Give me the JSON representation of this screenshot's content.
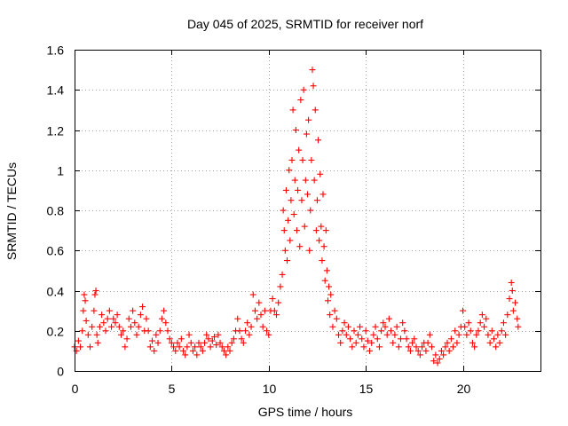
{
  "chart_data": {
    "type": "scatter",
    "title": "Day 045 of 2025, SRMTID for receiver norf",
    "xlabel": "GPS time / hours",
    "ylabel": "SRMTID / TECUs",
    "xlim": [
      0,
      24
    ],
    "ylim": [
      0,
      1.6
    ],
    "xticks": [
      0,
      5,
      10,
      15,
      20
    ],
    "yticks": [
      0,
      0.2,
      0.4,
      0.6,
      0.8,
      1,
      1.2,
      1.4,
      1.6
    ],
    "xtick_labels": [
      "0",
      "5",
      "10",
      "15",
      "20"
    ],
    "ytick_labels": [
      "0",
      "0.2",
      "0.4",
      "0.6",
      "0.8",
      "1",
      "1.2",
      "1.4",
      "1.6"
    ],
    "grid": true,
    "marker": "+",
    "series": [
      {
        "name": "SRMTID",
        "color": "#ff0000",
        "points": [
          [
            0.0,
            0.12
          ],
          [
            0.1,
            0.1
          ],
          [
            0.2,
            0.15
          ],
          [
            0.3,
            0.12
          ],
          [
            0.4,
            0.2
          ],
          [
            0.45,
            0.3
          ],
          [
            0.5,
            0.38
          ],
          [
            0.55,
            0.35
          ],
          [
            0.6,
            0.25
          ],
          [
            0.7,
            0.18
          ],
          [
            0.8,
            0.12
          ],
          [
            0.9,
            0.22
          ],
          [
            1.0,
            0.3
          ],
          [
            1.05,
            0.38
          ],
          [
            1.1,
            0.4
          ],
          [
            1.15,
            0.18
          ],
          [
            1.2,
            0.14
          ],
          [
            1.3,
            0.22
          ],
          [
            1.4,
            0.28
          ],
          [
            1.5,
            0.24
          ],
          [
            1.6,
            0.2
          ],
          [
            1.7,
            0.26
          ],
          [
            1.8,
            0.3
          ],
          [
            1.9,
            0.22
          ],
          [
            2.0,
            0.26
          ],
          [
            2.1,
            0.24
          ],
          [
            2.2,
            0.28
          ],
          [
            2.3,
            0.22
          ],
          [
            2.4,
            0.18
          ],
          [
            2.5,
            0.2
          ],
          [
            2.6,
            0.12
          ],
          [
            2.7,
            0.16
          ],
          [
            2.8,
            0.26
          ],
          [
            2.9,
            0.22
          ],
          [
            3.0,
            0.3
          ],
          [
            3.1,
            0.24
          ],
          [
            3.2,
            0.18
          ],
          [
            3.3,
            0.22
          ],
          [
            3.4,
            0.28
          ],
          [
            3.5,
            0.32
          ],
          [
            3.6,
            0.2
          ],
          [
            3.7,
            0.26
          ],
          [
            3.8,
            0.2
          ],
          [
            3.9,
            0.12
          ],
          [
            4.0,
            0.15
          ],
          [
            4.1,
            0.1
          ],
          [
            4.2,
            0.18
          ],
          [
            4.3,
            0.14
          ],
          [
            4.4,
            0.2
          ],
          [
            4.5,
            0.26
          ],
          [
            4.6,
            0.3
          ],
          [
            4.7,
            0.24
          ],
          [
            4.8,
            0.2
          ],
          [
            4.9,
            0.16
          ],
          [
            5.0,
            0.14
          ],
          [
            5.1,
            0.12
          ],
          [
            5.2,
            0.1
          ],
          [
            5.3,
            0.14
          ],
          [
            5.4,
            0.12
          ],
          [
            5.5,
            0.16
          ],
          [
            5.6,
            0.1
          ],
          [
            5.7,
            0.08
          ],
          [
            5.8,
            0.12
          ],
          [
            5.9,
            0.18
          ],
          [
            6.0,
            0.14
          ],
          [
            6.1,
            0.1
          ],
          [
            6.2,
            0.12
          ],
          [
            6.3,
            0.08
          ],
          [
            6.4,
            0.14
          ],
          [
            6.5,
            0.12
          ],
          [
            6.6,
            0.1
          ],
          [
            6.7,
            0.14
          ],
          [
            6.8,
            0.18
          ],
          [
            6.9,
            0.16
          ],
          [
            7.0,
            0.12
          ],
          [
            7.1,
            0.15
          ],
          [
            7.2,
            0.17
          ],
          [
            7.3,
            0.13
          ],
          [
            7.4,
            0.18
          ],
          [
            7.5,
            0.14
          ],
          [
            7.6,
            0.12
          ],
          [
            7.7,
            0.1
          ],
          [
            7.8,
            0.08
          ],
          [
            7.9,
            0.12
          ],
          [
            8.0,
            0.1
          ],
          [
            8.1,
            0.14
          ],
          [
            8.2,
            0.16
          ],
          [
            8.3,
            0.2
          ],
          [
            8.4,
            0.26
          ],
          [
            8.5,
            0.2
          ],
          [
            8.6,
            0.16
          ],
          [
            8.7,
            0.14
          ],
          [
            8.8,
            0.2
          ],
          [
            8.9,
            0.24
          ],
          [
            9.0,
            0.18
          ],
          [
            9.1,
            0.22
          ],
          [
            9.2,
            0.38
          ],
          [
            9.3,
            0.3
          ],
          [
            9.4,
            0.26
          ],
          [
            9.5,
            0.34
          ],
          [
            9.6,
            0.28
          ],
          [
            9.7,
            0.22
          ],
          [
            9.8,
            0.3
          ],
          [
            9.9,
            0.2
          ],
          [
            10.0,
            0.18
          ],
          [
            10.1,
            0.3
          ],
          [
            10.2,
            0.36
          ],
          [
            10.3,
            0.3
          ],
          [
            10.4,
            0.28
          ],
          [
            10.5,
            0.34
          ],
          [
            10.6,
            0.42
          ],
          [
            10.7,
            0.48
          ],
          [
            10.75,
            0.8
          ],
          [
            10.8,
            0.7
          ],
          [
            10.85,
            0.6
          ],
          [
            10.9,
            0.9
          ],
          [
            10.95,
            0.55
          ],
          [
            11.0,
            0.75
          ],
          [
            11.05,
            1.0
          ],
          [
            11.1,
            0.65
          ],
          [
            11.15,
            0.85
          ],
          [
            11.2,
            1.05
          ],
          [
            11.25,
            1.3
          ],
          [
            11.3,
            0.78
          ],
          [
            11.35,
            0.95
          ],
          [
            11.4,
            1.2
          ],
          [
            11.45,
            0.7
          ],
          [
            11.5,
            0.9
          ],
          [
            11.55,
            1.1
          ],
          [
            11.6,
            0.62
          ],
          [
            11.65,
            1.35
          ],
          [
            11.7,
            0.85
          ],
          [
            11.75,
            1.05
          ],
          [
            11.8,
            1.4
          ],
          [
            11.85,
            0.72
          ],
          [
            11.9,
            0.95
          ],
          [
            11.95,
            1.18
          ],
          [
            12.0,
            0.88
          ],
          [
            12.05,
            1.25
          ],
          [
            12.1,
            0.6
          ],
          [
            12.15,
            0.8
          ],
          [
            12.2,
            1.05
          ],
          [
            12.25,
            1.5
          ],
          [
            12.3,
            1.42
          ],
          [
            12.35,
            0.95
          ],
          [
            12.4,
            1.3
          ],
          [
            12.45,
            0.7
          ],
          [
            12.5,
            0.85
          ],
          [
            12.55,
            1.15
          ],
          [
            12.6,
            0.65
          ],
          [
            12.65,
            0.98
          ],
          [
            12.7,
            0.72
          ],
          [
            12.75,
            0.55
          ],
          [
            12.8,
            0.88
          ],
          [
            12.85,
            0.62
          ],
          [
            12.9,
            0.45
          ],
          [
            12.95,
            0.7
          ],
          [
            13.0,
            0.5
          ],
          [
            13.05,
            0.35
          ],
          [
            13.1,
            0.42
          ],
          [
            13.15,
            0.28
          ],
          [
            13.2,
            0.38
          ],
          [
            13.3,
            0.22
          ],
          [
            13.4,
            0.3
          ],
          [
            13.5,
            0.26
          ],
          [
            13.6,
            0.18
          ],
          [
            13.7,
            0.14
          ],
          [
            13.8,
            0.2
          ],
          [
            13.9,
            0.24
          ],
          [
            14.0,
            0.18
          ],
          [
            14.1,
            0.22
          ],
          [
            14.2,
            0.16
          ],
          [
            14.3,
            0.12
          ],
          [
            14.4,
            0.2
          ],
          [
            14.5,
            0.14
          ],
          [
            14.6,
            0.18
          ],
          [
            14.7,
            0.22
          ],
          [
            14.8,
            0.16
          ],
          [
            14.9,
            0.12
          ],
          [
            15.0,
            0.2
          ],
          [
            15.1,
            0.15
          ],
          [
            15.2,
            0.1
          ],
          [
            15.3,
            0.14
          ],
          [
            15.4,
            0.18
          ],
          [
            15.5,
            0.22
          ],
          [
            15.6,
            0.16
          ],
          [
            15.7,
            0.12
          ],
          [
            15.8,
            0.2
          ],
          [
            15.9,
            0.24
          ],
          [
            16.0,
            0.22
          ],
          [
            16.1,
            0.18
          ],
          [
            16.2,
            0.26
          ],
          [
            16.3,
            0.2
          ],
          [
            16.4,
            0.14
          ],
          [
            16.5,
            0.18
          ],
          [
            16.6,
            0.22
          ],
          [
            16.7,
            0.12
          ],
          [
            16.8,
            0.16
          ],
          [
            16.9,
            0.24
          ],
          [
            17.0,
            0.2
          ],
          [
            17.1,
            0.16
          ],
          [
            17.2,
            0.12
          ],
          [
            17.3,
            0.1
          ],
          [
            17.4,
            0.14
          ],
          [
            17.5,
            0.16
          ],
          [
            17.6,
            0.12
          ],
          [
            17.7,
            0.1
          ],
          [
            17.8,
            0.08
          ],
          [
            17.9,
            0.12
          ],
          [
            18.0,
            0.14
          ],
          [
            18.1,
            0.1
          ],
          [
            18.2,
            0.14
          ],
          [
            18.3,
            0.18
          ],
          [
            18.4,
            0.12
          ],
          [
            18.5,
            0.05
          ],
          [
            18.6,
            0.08
          ],
          [
            18.7,
            0.04
          ],
          [
            18.8,
            0.06
          ],
          [
            18.9,
            0.1
          ],
          [
            19.0,
            0.08
          ],
          [
            19.1,
            0.12
          ],
          [
            19.2,
            0.14
          ],
          [
            19.3,
            0.1
          ],
          [
            19.4,
            0.16
          ],
          [
            19.5,
            0.12
          ],
          [
            19.6,
            0.2
          ],
          [
            19.7,
            0.14
          ],
          [
            19.8,
            0.18
          ],
          [
            19.9,
            0.22
          ],
          [
            20.0,
            0.3
          ],
          [
            20.1,
            0.22
          ],
          [
            20.2,
            0.18
          ],
          [
            20.3,
            0.24
          ],
          [
            20.4,
            0.2
          ],
          [
            20.5,
            0.14
          ],
          [
            20.6,
            0.12
          ],
          [
            20.7,
            0.18
          ],
          [
            20.8,
            0.2
          ],
          [
            20.9,
            0.24
          ],
          [
            21.0,
            0.28
          ],
          [
            21.1,
            0.22
          ],
          [
            21.2,
            0.26
          ],
          [
            21.3,
            0.18
          ],
          [
            21.4,
            0.14
          ],
          [
            21.5,
            0.2
          ],
          [
            21.6,
            0.16
          ],
          [
            21.7,
            0.12
          ],
          [
            21.8,
            0.18
          ],
          [
            21.9,
            0.14
          ],
          [
            22.0,
            0.2
          ],
          [
            22.1,
            0.24
          ],
          [
            22.2,
            0.18
          ],
          [
            22.3,
            0.28
          ],
          [
            22.4,
            0.36
          ],
          [
            22.5,
            0.44
          ],
          [
            22.55,
            0.4
          ],
          [
            22.6,
            0.3
          ],
          [
            22.7,
            0.34
          ],
          [
            22.8,
            0.26
          ],
          [
            22.85,
            0.22
          ]
        ]
      }
    ]
  }
}
